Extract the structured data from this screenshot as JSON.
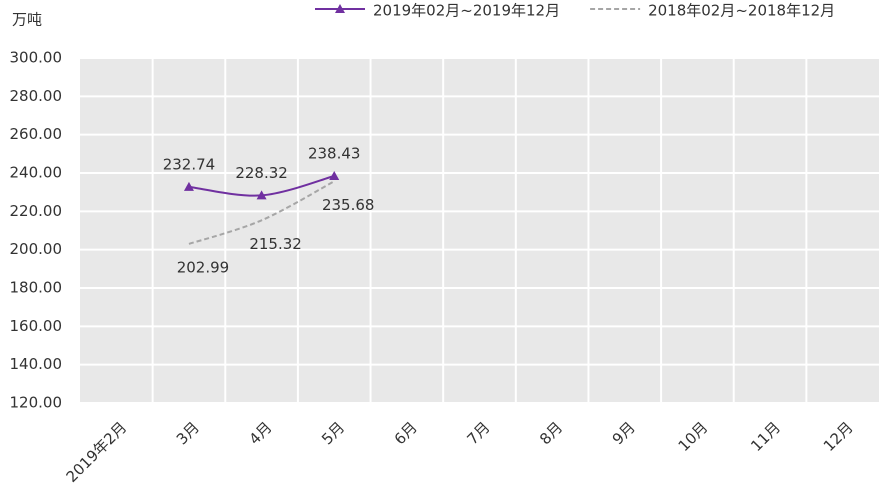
{
  "chart_data": {
    "type": "line",
    "y_label": "万吨",
    "categories": [
      "2019年2月",
      "3月",
      "4月",
      "5月",
      "6月",
      "7月",
      "8月",
      "9月",
      "10月",
      "11月",
      "12月"
    ],
    "series": [
      {
        "name": "2019年02月~2019年12月",
        "color": "#7030a0",
        "dash": false,
        "marker": "triangle",
        "values": [
          null,
          232.74,
          228.32,
          238.43,
          null,
          null,
          null,
          null,
          null,
          null,
          null
        ]
      },
      {
        "name": "2018年02月~2018年12月",
        "color": "#a6a6a6",
        "dash": true,
        "marker": "none",
        "values": [
          null,
          202.99,
          215.32,
          235.68,
          null,
          null,
          null,
          null,
          null,
          null,
          null
        ]
      }
    ],
    "ylim": [
      120,
      300
    ],
    "yticks": [
      {
        "value": 120,
        "label": "120.00"
      },
      {
        "value": 140,
        "label": "140.00"
      },
      {
        "value": 160,
        "label": "160.00"
      },
      {
        "value": 180,
        "label": "180.00"
      },
      {
        "value": 200,
        "label": "200.00"
      },
      {
        "value": 220,
        "label": "220.00"
      },
      {
        "value": 240,
        "label": "240.00"
      },
      {
        "value": 260,
        "label": "260.00"
      },
      {
        "value": 280,
        "label": "280.00"
      },
      {
        "value": 300,
        "label": "300.00"
      }
    ],
    "grid": true,
    "legend": "top"
  }
}
